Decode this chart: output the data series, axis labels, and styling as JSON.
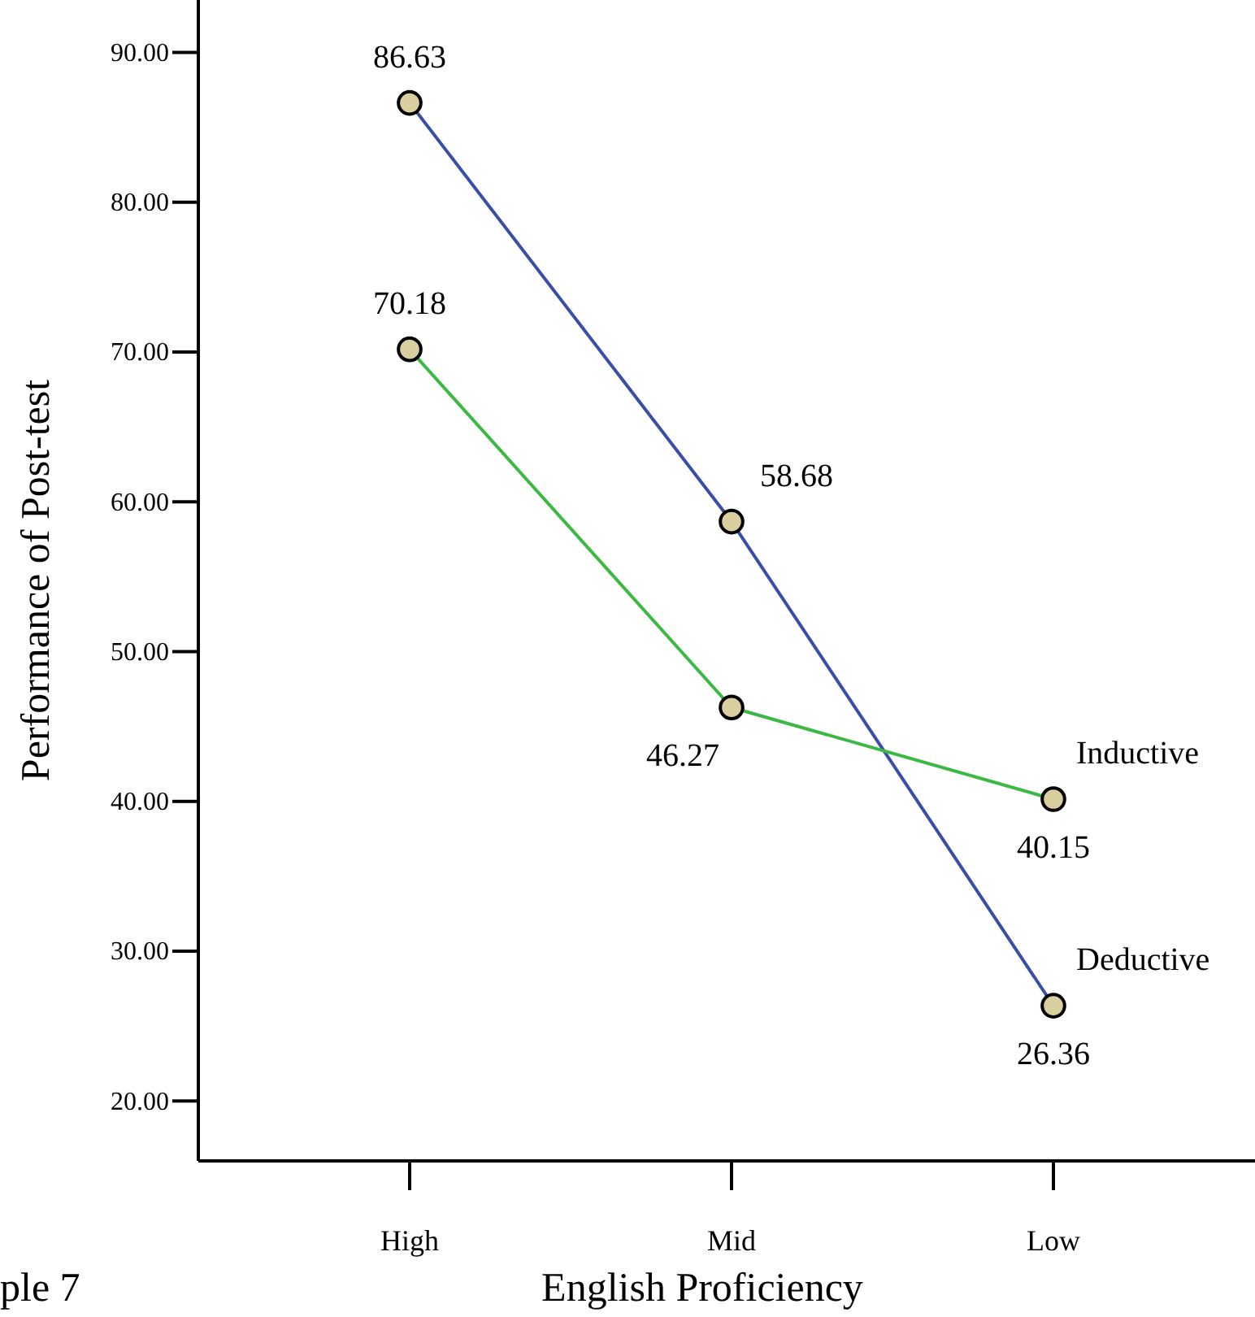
{
  "chart_data": {
    "type": "line",
    "xlabel": "English Proficiency",
    "ylabel": "Performance of Post-test",
    "categories": [
      "High",
      "Mid",
      "Low"
    ],
    "series": [
      {
        "name": "Deductive",
        "color": "#3b4ea6",
        "values": [
          86.63,
          58.68,
          26.36
        ]
      },
      {
        "name": "Inductive",
        "color": "#3cb944",
        "values": [
          70.18,
          46.27,
          40.15
        ]
      }
    ],
    "ylim": [
      16,
      93.5
    ],
    "yticks": [
      {
        "value": 20,
        "label": "20.00"
      },
      {
        "value": 30,
        "label": "30.00"
      },
      {
        "value": 40,
        "label": "40.00"
      },
      {
        "value": 50,
        "label": "50.00"
      },
      {
        "value": 60,
        "label": "60.00"
      },
      {
        "value": 70,
        "label": "70.00"
      },
      {
        "value": 80,
        "label": "80.00"
      },
      {
        "value": 90,
        "label": "90.00"
      }
    ],
    "marker": "circle",
    "data_labels": true,
    "grid": false,
    "annotations": [
      "ple 7"
    ]
  }
}
